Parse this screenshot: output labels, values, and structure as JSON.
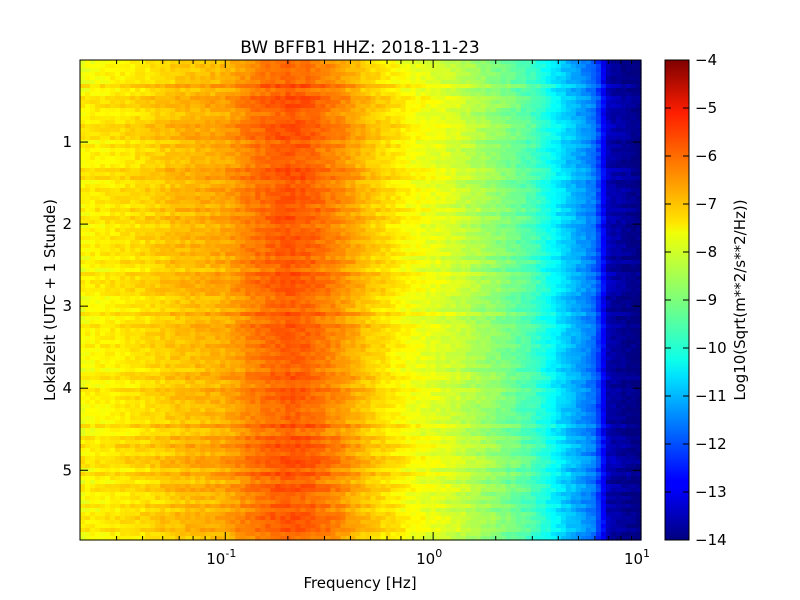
{
  "chart_data": {
    "type": "heatmap",
    "title": "BW BFFB1 HHZ: 2018-11-23",
    "xlabel": "Frequency [Hz]",
    "ylabel": "Lokalzeit (UTC + 1 Stunde)",
    "x_scale": "log",
    "xlim": [
      0.02,
      10
    ],
    "ylim": [
      5.85,
      0
    ],
    "x_ticks": [
      {
        "value": 0.1,
        "base": "10",
        "exp": "-1"
      },
      {
        "value": 1,
        "base": "10",
        "exp": "0"
      },
      {
        "value": 10,
        "base": "10",
        "exp": "1"
      }
    ],
    "y_ticks": [
      {
        "value": 1,
        "label": "1"
      },
      {
        "value": 2,
        "label": "2"
      },
      {
        "value": 3,
        "label": "3"
      },
      {
        "value": 4,
        "label": "4"
      },
      {
        "value": 5,
        "label": "5"
      }
    ],
    "colorbar": {
      "label": "Log10(Sqrt(m**2/s**2/Hz))",
      "min": -14,
      "max": -4,
      "colormap": "jet",
      "ticks": [
        "-4",
        "-5",
        "-6",
        "-7",
        "-8",
        "-9",
        "-10",
        "-11",
        "-12",
        "-13",
        "-14"
      ]
    },
    "spectrum_profile": [
      {
        "freq": 0.02,
        "value": -7.7
      },
      {
        "freq": 0.04,
        "value": -7.4
      },
      {
        "freq": 0.06,
        "value": -7.1
      },
      {
        "freq": 0.1,
        "value": -6.9
      },
      {
        "freq": 0.14,
        "value": -6.4
      },
      {
        "freq": 0.2,
        "value": -6.1
      },
      {
        "freq": 0.25,
        "value": -6.2
      },
      {
        "freq": 0.35,
        "value": -6.6
      },
      {
        "freq": 0.5,
        "value": -7.2
      },
      {
        "freq": 0.8,
        "value": -7.8
      },
      {
        "freq": 1.2,
        "value": -8.1
      },
      {
        "freq": 2.0,
        "value": -8.8
      },
      {
        "freq": 3.0,
        "value": -9.5
      },
      {
        "freq": 4.5,
        "value": -10.8
      },
      {
        "freq": 6.0,
        "value": -11.6
      },
      {
        "freq": 7.0,
        "value": -13.5
      },
      {
        "freq": 10.0,
        "value": -14
      }
    ]
  }
}
